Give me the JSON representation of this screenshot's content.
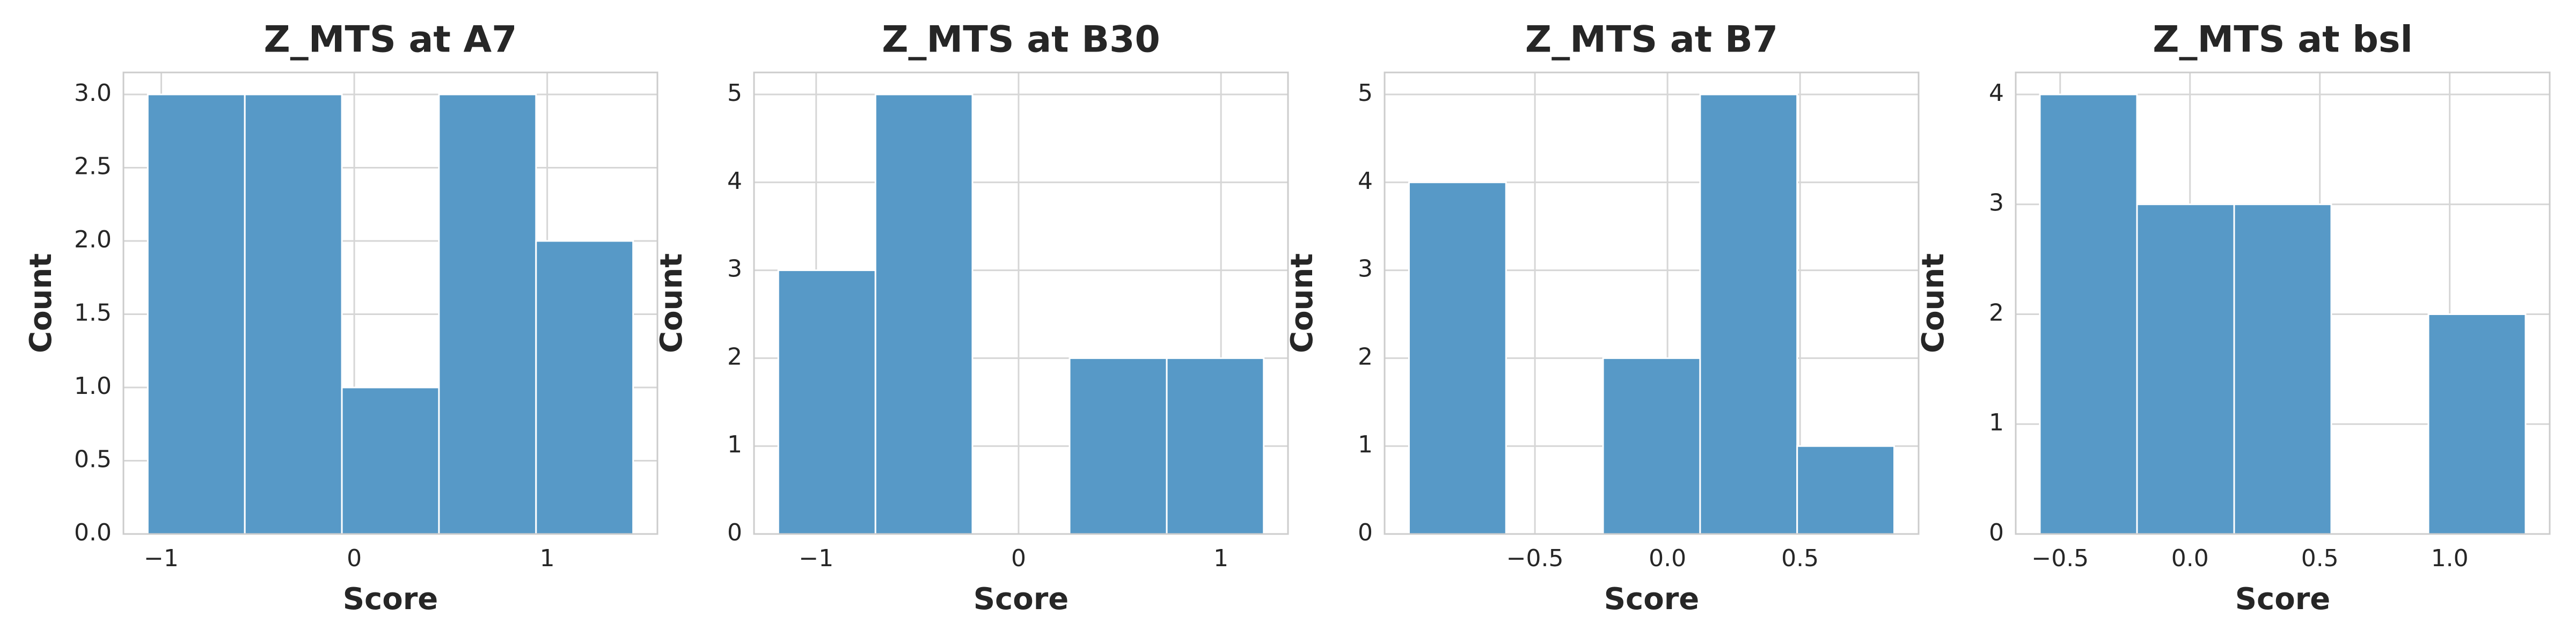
{
  "chart_data": [
    {
      "type": "histogram",
      "title": "Z_MTS at A7",
      "xlabel": "Score",
      "ylabel": "Count",
      "color": "#5799c7",
      "grid": true,
      "bins": [
        -1.07,
        -0.567,
        -0.064,
        0.439,
        0.942,
        1.445
      ],
      "values": [
        3,
        3,
        1,
        3,
        2
      ],
      "xlim": [
        -1.196,
        1.571
      ],
      "ylim": [
        0,
        3.15
      ],
      "xticks": [
        {
          "value": -1,
          "label": "−1"
        },
        0,
        1
      ],
      "yticks": [
        {
          "value": 0,
          "label": "0.0"
        },
        {
          "value": 0.5,
          "label": "0.5"
        },
        {
          "value": 1,
          "label": "1.0"
        },
        {
          "value": 1.5,
          "label": "1.5"
        },
        {
          "value": 2,
          "label": "2.0"
        },
        {
          "value": 2.5,
          "label": "2.5"
        },
        {
          "value": 3,
          "label": "3.0"
        }
      ]
    },
    {
      "type": "histogram",
      "title": "Z_MTS at B30",
      "xlabel": "Score",
      "ylabel": "Count",
      "color": "#5799c7",
      "grid": true,
      "bins": [
        -1.187,
        -0.707,
        -0.228,
        0.252,
        0.732,
        1.211
      ],
      "values": [
        3,
        5,
        0,
        2,
        2
      ],
      "xlim": [
        -1.307,
        1.331
      ],
      "ylim": [
        0,
        5.25
      ],
      "xticks": [
        {
          "value": -1,
          "label": "−1"
        },
        0,
        1
      ],
      "yticks": [
        0,
        1,
        2,
        3,
        4,
        5
      ]
    },
    {
      "type": "histogram",
      "title": "Z_MTS at B7",
      "xlabel": "Score",
      "ylabel": "Count",
      "color": "#5799c7",
      "grid": true,
      "bins": [
        -0.975,
        -0.609,
        -0.243,
        0.123,
        0.489,
        0.855
      ],
      "values": [
        4,
        0,
        2,
        5,
        1
      ],
      "xlim": [
        -1.067,
        0.947
      ],
      "ylim": [
        0,
        5.25
      ],
      "xticks": [
        {
          "value": -0.5,
          "label": "−0.5"
        },
        {
          "value": 0,
          "label": "0.0"
        },
        0.5
      ],
      "yticks": [
        0,
        1,
        2,
        3,
        4,
        5
      ]
    },
    {
      "type": "histogram",
      "title": "Z_MTS at bsl",
      "xlabel": "Score",
      "ylabel": "Count",
      "color": "#5799c7",
      "grid": true,
      "bins": [
        -0.578,
        -0.204,
        0.17,
        0.544,
        0.918,
        1.292
      ],
      "values": [
        4,
        3,
        3,
        0,
        2
      ],
      "xlim": [
        -0.671,
        1.385
      ],
      "ylim": [
        0,
        4.2
      ],
      "xticks": [
        {
          "value": -0.5,
          "label": "−0.5"
        },
        {
          "value": 0,
          "label": "0.0"
        },
        0.5,
        {
          "value": 1,
          "label": "1.0"
        }
      ],
      "yticks": [
        0,
        1,
        2,
        3,
        4
      ]
    }
  ]
}
